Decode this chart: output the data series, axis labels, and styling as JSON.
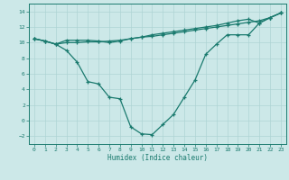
{
  "xlabel": "Humidex (Indice chaleur)",
  "xlim": [
    -0.5,
    23.5
  ],
  "ylim": [
    -3.0,
    15.0
  ],
  "yticks": [
    -2,
    0,
    2,
    4,
    6,
    8,
    10,
    12,
    14
  ],
  "xticks": [
    0,
    1,
    2,
    3,
    4,
    5,
    6,
    7,
    8,
    9,
    10,
    11,
    12,
    13,
    14,
    15,
    16,
    17,
    18,
    19,
    20,
    21,
    22,
    23
  ],
  "line_color": "#1a7a6e",
  "bg_color": "#cce8e8",
  "grid_color": "#aed4d4",
  "line1_x": [
    0,
    1,
    2,
    3,
    4,
    5,
    6,
    7,
    8,
    9,
    10,
    11,
    12,
    13,
    14,
    15,
    16,
    17,
    18,
    19,
    20,
    21,
    22,
    23
  ],
  "line1_y": [
    10.5,
    10.2,
    9.8,
    9.0,
    7.5,
    5.0,
    4.7,
    3.0,
    2.8,
    -0.8,
    -1.7,
    -1.8,
    -0.5,
    0.8,
    3.0,
    5.2,
    8.5,
    9.8,
    11.0,
    11.0,
    11.0,
    12.5,
    13.2,
    13.8
  ],
  "line2_x": [
    0,
    1,
    2,
    3,
    4,
    5,
    6,
    7,
    8,
    9,
    10,
    11,
    12,
    13,
    14,
    15,
    16,
    17,
    18,
    19,
    20,
    21,
    22,
    23
  ],
  "line2_y": [
    10.5,
    10.2,
    9.8,
    10.0,
    10.0,
    10.1,
    10.1,
    10.2,
    10.3,
    10.5,
    10.7,
    10.8,
    11.0,
    11.2,
    11.4,
    11.6,
    11.8,
    12.0,
    12.2,
    12.4,
    12.6,
    12.8,
    13.2,
    13.8
  ],
  "line3_x": [
    0,
    1,
    2,
    3,
    4,
    5,
    6,
    7,
    8,
    9,
    10,
    11,
    12,
    13,
    14,
    15,
    16,
    17,
    18,
    19,
    20,
    21,
    22,
    23
  ],
  "line3_y": [
    10.5,
    10.2,
    9.8,
    10.3,
    10.3,
    10.3,
    10.2,
    10.0,
    10.2,
    10.5,
    10.7,
    11.0,
    11.2,
    11.4,
    11.6,
    11.8,
    12.0,
    12.2,
    12.5,
    12.8,
    13.0,
    12.5,
    13.2,
    13.8
  ]
}
